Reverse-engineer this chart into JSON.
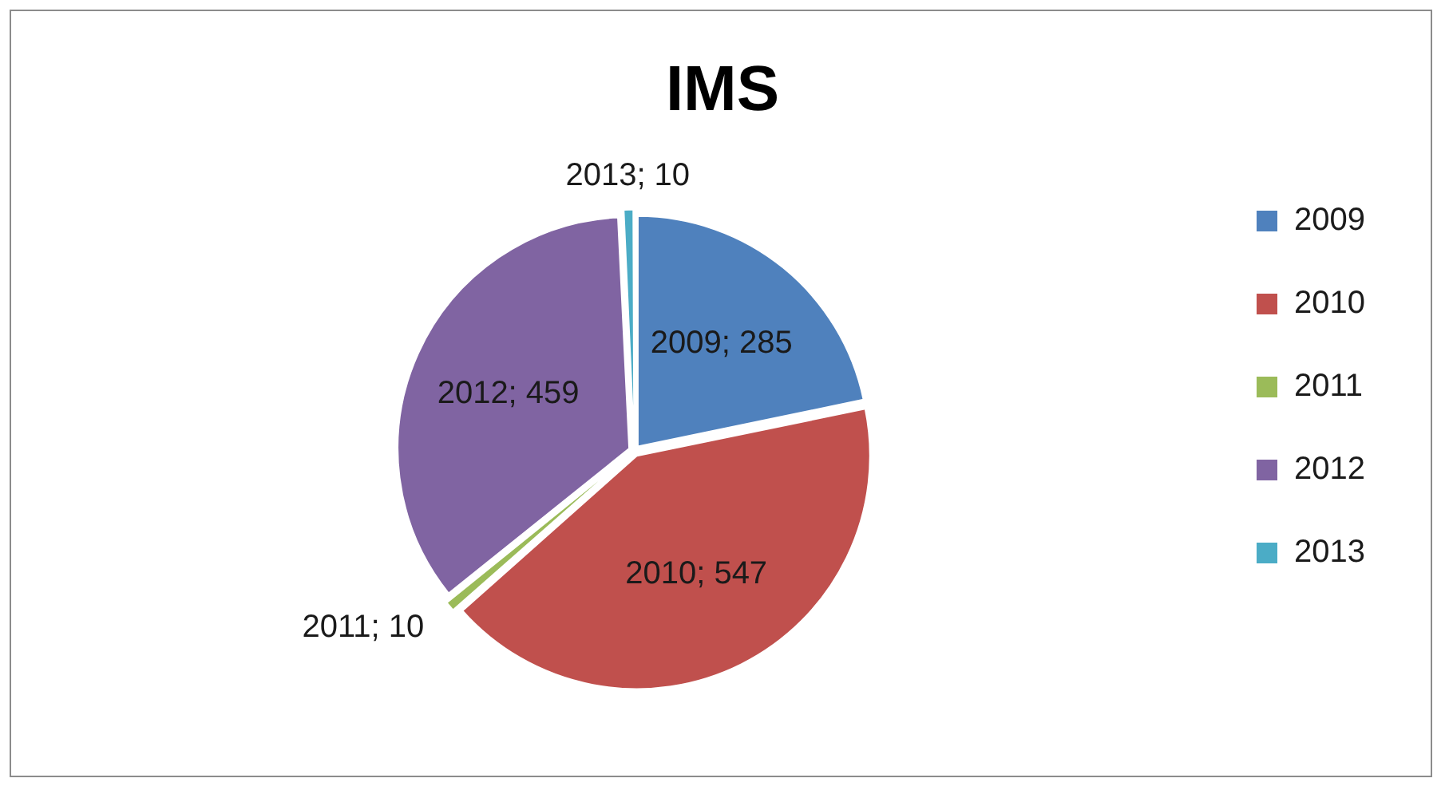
{
  "chart_data": {
    "type": "pie",
    "title": "IMS",
    "categories": [
      "2009",
      "2010",
      "2011",
      "2012",
      "2013"
    ],
    "values": [
      285,
      547,
      10,
      459,
      10
    ],
    "colors": [
      "#4f81bd",
      "#c0504d",
      "#9bbb59",
      "#8064a2",
      "#4bacc6"
    ],
    "value_labels": [
      "2009; 285",
      "2010; 547",
      "2011; 10",
      "2012; 459",
      "2013; 10"
    ],
    "legend": "right"
  }
}
